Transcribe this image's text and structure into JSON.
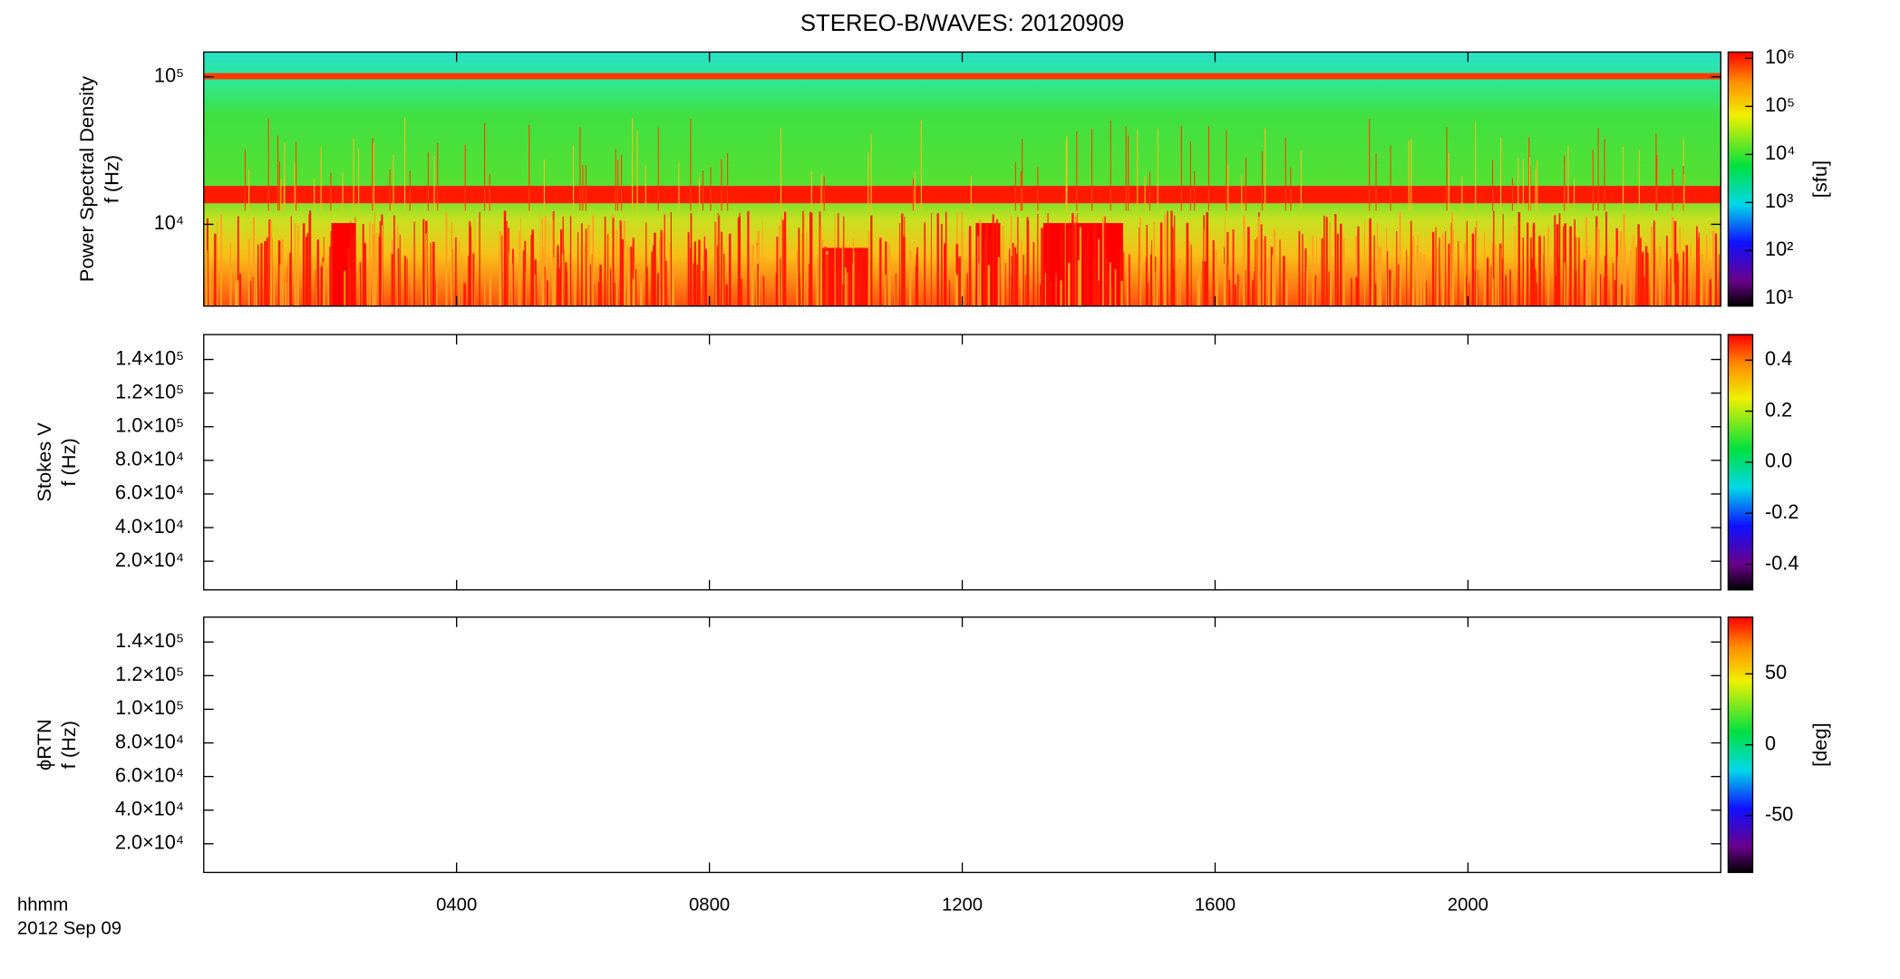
{
  "chart_data": {
    "type": "spectrogram-panels",
    "title": "STEREO-B/WAVES: 20120909",
    "x_label": "hhmm",
    "date_label": "2012 Sep 09",
    "xlim": [
      0,
      24
    ],
    "xticks": [
      {
        "value": 4,
        "label": "0400"
      },
      {
        "value": 8,
        "label": "0800"
      },
      {
        "value": 12,
        "label": "1200"
      },
      {
        "value": 16,
        "label": "1600"
      },
      {
        "value": 20,
        "label": "2000"
      }
    ],
    "panels": [
      {
        "type": "heatmap",
        "y_label": "Power Spectral Density",
        "y_sublabel": "f (Hz)",
        "ylog": true,
        "ylim": [
          2790,
          147000
        ],
        "yticks": [
          {
            "value": 10000,
            "label": "10⁴"
          },
          {
            "value": 100000,
            "label": "10⁵"
          }
        ],
        "colorbar": {
          "zlog": true,
          "zlim": [
            7,
            1350000
          ],
          "label": "[sfu]",
          "zticks": [
            {
              "value": 10,
              "label": "10¹"
            },
            {
              "value": 100,
              "label": "10²"
            },
            {
              "value": 1000,
              "label": "10³"
            },
            {
              "value": 10000,
              "label": "10⁴"
            },
            {
              "value": 100000,
              "label": "10⁵"
            },
            {
              "value": 1000000,
              "label": "10⁶"
            }
          ]
        }
      },
      {
        "type": "empty",
        "y_label": "Stokes V",
        "y_sublabel": "f (Hz)",
        "ylog": false,
        "ylim": [
          2960,
          154800
        ],
        "yticks": [
          {
            "value": 20000,
            "label": "2.0×10⁴"
          },
          {
            "value": 40000,
            "label": "4.0×10⁴"
          },
          {
            "value": 60000,
            "label": "6.0×10⁴"
          },
          {
            "value": 80000,
            "label": "8.0×10⁴"
          },
          {
            "value": 100000,
            "label": "1.0×10⁵"
          },
          {
            "value": 120000,
            "label": "1.2×10⁵"
          },
          {
            "value": 140000,
            "label": "1.4×10⁵"
          }
        ],
        "colorbar": {
          "zlog": false,
          "zlim": [
            -0.5,
            0.5
          ],
          "label": null,
          "zticks": [
            -0.4,
            -0.2,
            {
              "value": 0,
              "label": "0.0"
            },
            0.2,
            0.4
          ]
        }
      },
      {
        "type": "empty",
        "y_label": "ϕRTN",
        "y_sublabel": "f (Hz)",
        "ylog": false,
        "ylim": [
          2960,
          154800
        ],
        "yticks": [
          {
            "value": 20000,
            "label": "2.0×10⁴"
          },
          {
            "value": 40000,
            "label": "4.0×10⁴"
          },
          {
            "value": 60000,
            "label": "6.0×10⁴"
          },
          {
            "value": 80000,
            "label": "8.0×10⁴"
          },
          {
            "value": 100000,
            "label": "1.0×10⁵"
          },
          {
            "value": 120000,
            "label": "1.2×10⁵"
          },
          {
            "value": 140000,
            "label": "1.4×10⁵"
          }
        ],
        "colorbar": {
          "zlog": false,
          "zlim": [
            -90,
            90
          ],
          "label": "[deg]",
          "zticks": [
            -50,
            0,
            50
          ]
        }
      }
    ]
  }
}
